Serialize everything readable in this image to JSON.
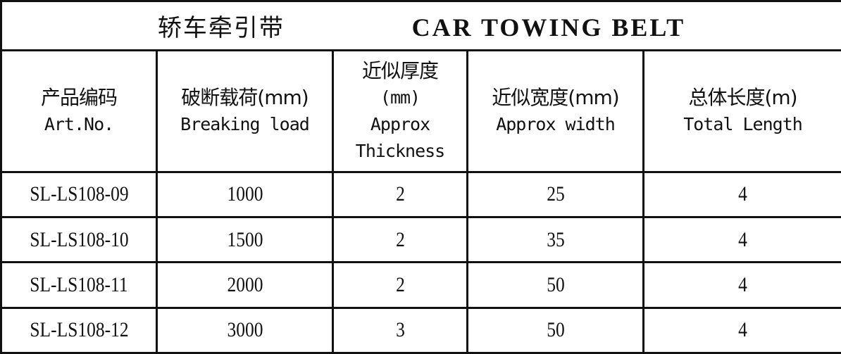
{
  "title": {
    "cn": "轿车牵引带",
    "en": "CAR TOWING BELT"
  },
  "columns": [
    {
      "cn": "产品编码",
      "en": [
        "Art.No."
      ]
    },
    {
      "cn": "破断载荷(mm)",
      "en": [
        "Breaking load"
      ]
    },
    {
      "cn": "近似厚度",
      "en": [
        "(mm)",
        "Approx",
        "Thickness"
      ]
    },
    {
      "cn": "近似宽度(mm)",
      "en": [
        "Approx width"
      ]
    },
    {
      "cn": "总体长度(m)",
      "en": [
        "Total Length"
      ]
    }
  ],
  "rows": [
    [
      "SL-LS108-09",
      "1000",
      "2",
      "25",
      "4"
    ],
    [
      "SL-LS108-10",
      "1500",
      "2",
      "35",
      "4"
    ],
    [
      "SL-LS108-11",
      "2000",
      "2",
      "50",
      "4"
    ],
    [
      "SL-LS108-12",
      "3000",
      "3",
      "50",
      "4"
    ]
  ]
}
